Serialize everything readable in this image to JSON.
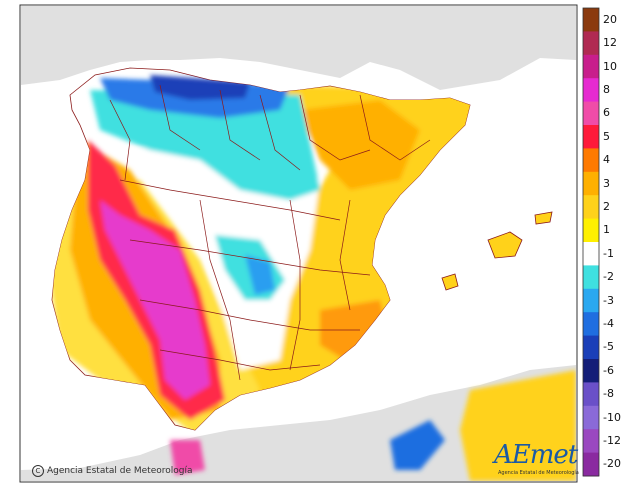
{
  "legend": {
    "labels": [
      "20",
      "12",
      "10",
      "8",
      "6",
      "5",
      "4",
      "3",
      "2",
      "1",
      "-1",
      "-2",
      "-3",
      "-4",
      "-5",
      "-6",
      "-8",
      "-10",
      "-12",
      "-20"
    ],
    "colors": [
      "#8b3a0e",
      "#b02a52",
      "#c81e8c",
      "#e62ad0",
      "#f04ca8",
      "#ff1a3a",
      "#ff7a00",
      "#ffb000",
      "#ffd21a",
      "#fff000",
      "#ffffff",
      "#3fe0e0",
      "#2aa8f0",
      "#1f6ee0",
      "#1a3fb8",
      "#141e78",
      "#6a50c8",
      "#8a6ad8",
      "#9a48c0",
      "#8a2aa0"
    ]
  },
  "colors": {
    "sea": "#ffffff",
    "land_outside": "#e0e0e0",
    "border": "#8b1a1a",
    "frame": "#333333"
  },
  "footer": {
    "copyright": "Agencia Estatal de Meteorología"
  },
  "logo": {
    "text": "AEmet",
    "subtitle": "Agencia Estatal de Meteorología"
  }
}
